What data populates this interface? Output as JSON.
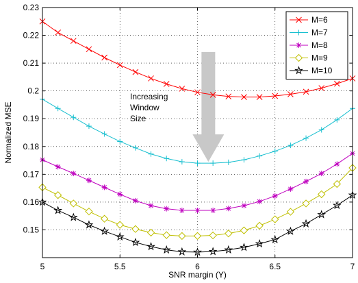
{
  "chart_data": {
    "type": "line",
    "xlabel": "SNR margin (Υ)",
    "ylabel": "Normalized MSE",
    "xlim": [
      5,
      7
    ],
    "ylim": [
      0.14,
      0.23
    ],
    "xticks": [
      "5",
      "5.5",
      "6",
      "6.5",
      "7"
    ],
    "yticks": [
      "0.15",
      "0.16",
      "0.17",
      "0.18",
      "0.19",
      "0.2",
      "0.21",
      "0.22",
      "0.23"
    ],
    "grid": true,
    "legend_position": "top-right",
    "x": [
      5.0,
      5.1,
      5.2,
      5.3,
      5.4,
      5.5,
      5.6,
      5.7,
      5.8,
      5.9,
      6.0,
      6.1,
      6.2,
      6.3,
      6.4,
      6.5,
      6.6,
      6.7,
      6.8,
      6.9,
      7.0
    ],
    "series": [
      {
        "name": "M=6",
        "color": "#ff0000",
        "marker": "x",
        "values": [
          0.225,
          0.221,
          0.218,
          0.215,
          0.212,
          0.2093,
          0.2068,
          0.2045,
          0.2025,
          0.2008,
          0.1995,
          0.1986,
          0.198,
          0.1978,
          0.1978,
          0.1982,
          0.1988,
          0.1997,
          0.201,
          0.2026,
          0.2045
        ]
      },
      {
        "name": "M=7",
        "color": "#17bfcf",
        "marker": "+",
        "values": [
          0.197,
          0.1937,
          0.1905,
          0.1873,
          0.1845,
          0.1818,
          0.1795,
          0.1773,
          0.1757,
          0.1745,
          0.174,
          0.174,
          0.1743,
          0.1752,
          0.1766,
          0.1783,
          0.1804,
          0.183,
          0.186,
          0.1896,
          0.1937
        ]
      },
      {
        "name": "M=8",
        "color": "#bf00bf",
        "marker": "*",
        "values": [
          0.1752,
          0.1727,
          0.1703,
          0.1678,
          0.1653,
          0.1628,
          0.1605,
          0.1587,
          0.1576,
          0.157,
          0.157,
          0.157,
          0.1577,
          0.1587,
          0.1602,
          0.1622,
          0.1647,
          0.1674,
          0.1703,
          0.1737,
          0.1775
        ]
      },
      {
        "name": "M=9",
        "color": "#bfbf00",
        "marker": "diamond",
        "values": [
          0.1653,
          0.1625,
          0.1595,
          0.1566,
          0.154,
          0.1518,
          0.1503,
          0.149,
          0.1481,
          0.1478,
          0.1478,
          0.148,
          0.1487,
          0.1498,
          0.1515,
          0.1538,
          0.1565,
          0.1595,
          0.1628,
          0.1665,
          0.1723
        ]
      },
      {
        "name": "M=10",
        "color": "#000000",
        "marker": "pentagram",
        "values": [
          0.16,
          0.157,
          0.1545,
          0.1518,
          0.1495,
          0.1475,
          0.1455,
          0.144,
          0.1428,
          0.1421,
          0.142,
          0.1422,
          0.1428,
          0.1437,
          0.145,
          0.1465,
          0.1495,
          0.1522,
          0.1555,
          0.1588,
          0.1625
        ]
      }
    ],
    "annotation": {
      "lines": [
        "Increasing",
        "Window",
        "Size"
      ],
      "arrow_x": 6.07,
      "arrow_from_y": 0.214,
      "arrow_to_y": 0.1745,
      "arrow_color": "#c8c8c8"
    }
  }
}
